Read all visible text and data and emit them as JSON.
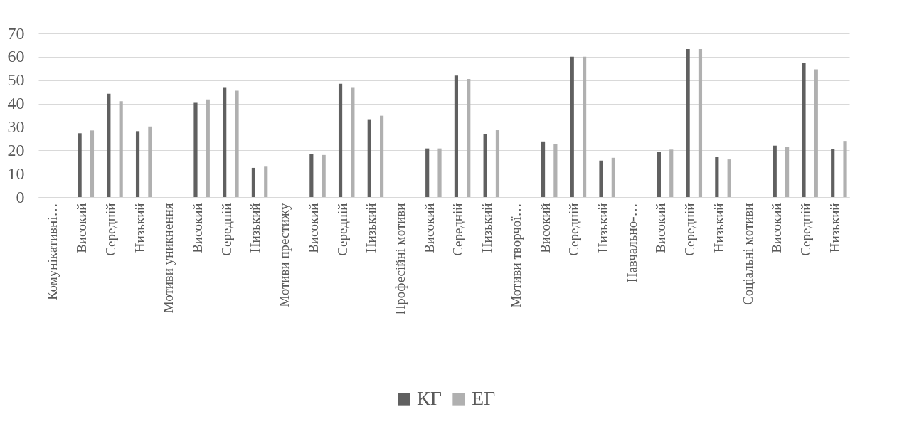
{
  "chart_data": {
    "type": "bar",
    "categories": [
      "Комунікативні…",
      "Високий",
      "Середній",
      "Низький",
      "Мотиви уникнення",
      "Високий",
      "Середній",
      "Низький",
      "Мотиви престижу",
      "Високий",
      "Середній",
      "Низький",
      "Професійні мотиви",
      "Високий",
      "Середній",
      "Низький",
      "Мотиви творчої…",
      "Високий",
      "Середній",
      "Низький",
      "Навчально-…",
      "Високий",
      "Середній",
      "Низький",
      "Соціальні мотиви",
      "Високий",
      "Середній",
      "Низький"
    ],
    "series": [
      {
        "name": "КГ",
        "color": "#606060",
        "values": [
          null,
          27.3,
          44.2,
          28.2,
          null,
          40.3,
          47,
          12.5,
          null,
          18.4,
          48.5,
          33.3,
          null,
          20.8,
          52,
          27,
          null,
          23.8,
          60,
          15.6,
          null,
          19.2,
          63.3,
          17.3,
          null,
          22,
          57.3,
          20.4
        ]
      },
      {
        "name": "ЕГ",
        "color": "#b0b0b0",
        "values": [
          null,
          28.5,
          41,
          30.2,
          null,
          41.8,
          45.5,
          13,
          null,
          18,
          47,
          34.8,
          null,
          20.8,
          50.5,
          28.6,
          null,
          22.7,
          60,
          16.8,
          null,
          20.3,
          63.3,
          16.1,
          null,
          21.6,
          54.6,
          24
        ]
      }
    ],
    "ylim": [
      0,
      70
    ],
    "yticks": [
      0,
      10,
      20,
      30,
      40,
      50,
      60,
      70
    ],
    "grid": "y",
    "legend": "bottom"
  }
}
